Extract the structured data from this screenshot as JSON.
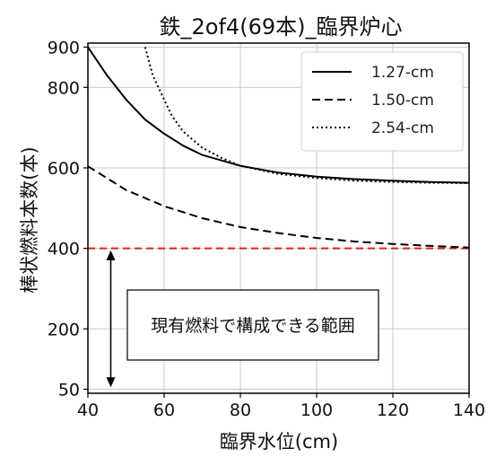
{
  "chart_data": {
    "type": "line",
    "title": "鉄_2of4(69本)_臨界炉心",
    "xlabel": "臨界水位(cm)",
    "ylabel": "棒状燃料本数(本)",
    "xlim": [
      40,
      140
    ],
    "ylim": [
      40,
      910
    ],
    "x_ticks": [
      40,
      60,
      80,
      100,
      120,
      140
    ],
    "y_ticks": [
      50,
      200,
      400,
      600,
      800,
      900
    ],
    "x_tick_labels": [
      "40",
      "60",
      "80",
      "100",
      "120",
      "140"
    ],
    "y_tick_labels": [
      "50",
      "200",
      "400",
      "600",
      "800",
      "900"
    ],
    "grid": true,
    "legend_position": "top-right",
    "series": [
      {
        "name": "1.27-cm",
        "style": "solid",
        "color": "#000000",
        "x": [
          40,
          45,
          50,
          55,
          60,
          65,
          70,
          80,
          90,
          100,
          110,
          120,
          130,
          140
        ],
        "y": [
          900,
          830,
          770,
          720,
          685,
          655,
          632,
          605,
          588,
          578,
          572,
          568,
          565,
          563
        ]
      },
      {
        "name": "1.50-cm",
        "style": "dashed",
        "color": "#000000",
        "x": [
          40,
          50,
          60,
          70,
          80,
          90,
          100,
          110,
          120,
          130,
          140
        ],
        "y": [
          604,
          545,
          505,
          475,
          453,
          438,
          426,
          417,
          411,
          406,
          402
        ]
      },
      {
        "name": "2.54-cm",
        "style": "dotted",
        "color": "#000000",
        "x": [
          55,
          57,
          60,
          62,
          65,
          70,
          75,
          80,
          90,
          100,
          110,
          120,
          130,
          140
        ],
        "y": [
          900,
          830,
          770,
          730,
          690,
          650,
          625,
          605,
          585,
          575,
          568,
          565,
          563,
          562
        ]
      }
    ],
    "reference_line": {
      "y": 400,
      "color": "#e02020",
      "style": "dashed"
    },
    "annotation": {
      "text": "現有燃料で構成できる範囲",
      "arrow_x": 46,
      "arrow_from": 395,
      "arrow_to": 55
    }
  }
}
